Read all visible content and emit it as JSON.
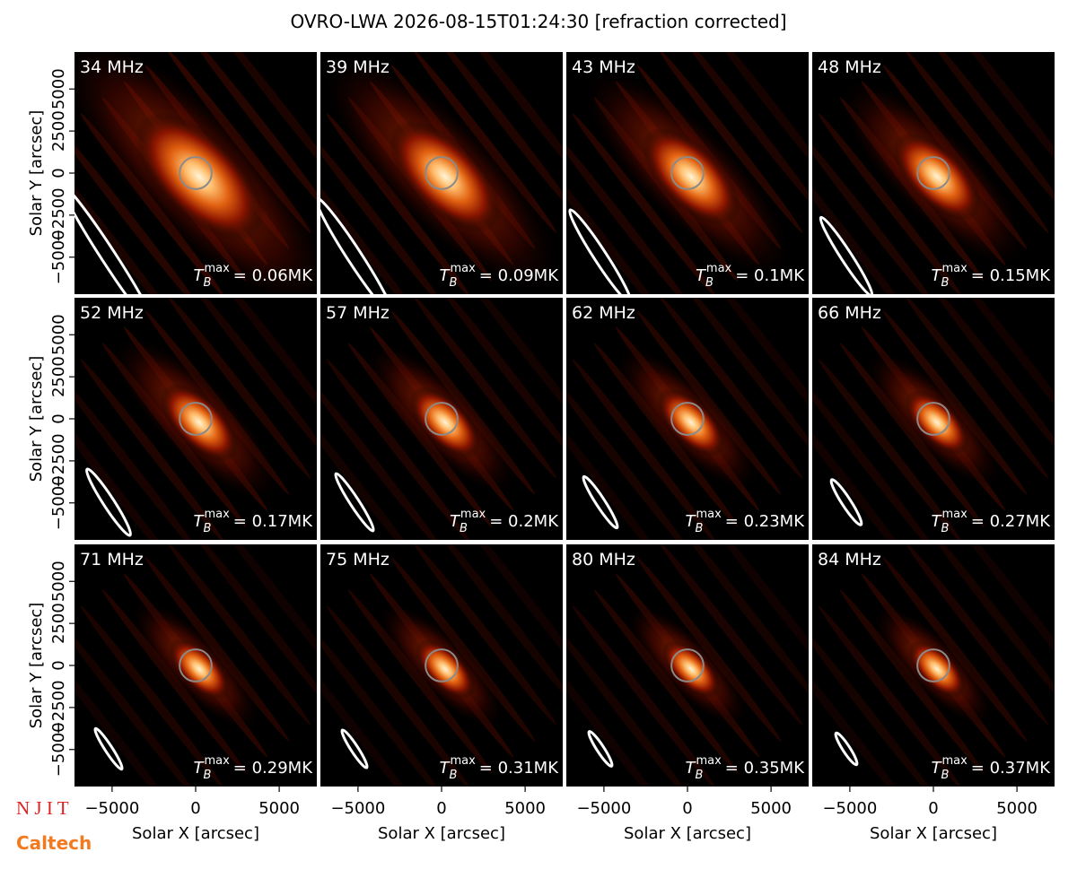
{
  "title": "OVRO-LWA 2026-08-15T01:24:30 [refraction corrected]",
  "logos": [
    "N J I T",
    "Caltech"
  ],
  "chart_data": [
    {
      "type": "image",
      "title": "34 MHz",
      "xlim": [
        -7250,
        7250
      ],
      "ylim": [
        -7200,
        7200
      ],
      "ylabel": "Solar Y [arcsec]",
      "yticks": [
        {
          "value": -5000,
          "label": "−5000"
        },
        {
          "value": -2500,
          "label": "−2500"
        },
        0,
        2500,
        5000
      ],
      "annotation": {
        "symbol": "T",
        "subscript": "B",
        "superscript": "max",
        "value": 0.06,
        "label": "= 0.06MK"
      }
    },
    {
      "type": "image",
      "title": "39 MHz",
      "xlim": [
        -7250,
        7250
      ],
      "ylim": [
        -7200,
        7200
      ],
      "annotation": {
        "symbol": "T",
        "subscript": "B",
        "superscript": "max",
        "value": 0.09,
        "label": "= 0.09MK"
      }
    },
    {
      "type": "image",
      "title": "43 MHz",
      "xlim": [
        -7250,
        7250
      ],
      "ylim": [
        -7200,
        7200
      ],
      "annotation": {
        "symbol": "T",
        "subscript": "B",
        "superscript": "max",
        "value": 0.1,
        "label": "= 0.1MK"
      }
    },
    {
      "type": "image",
      "title": "48 MHz",
      "xlim": [
        -7250,
        7250
      ],
      "ylim": [
        -7200,
        7200
      ],
      "annotation": {
        "symbol": "T",
        "subscript": "B",
        "superscript": "max",
        "value": 0.15,
        "label": "= 0.15MK"
      }
    },
    {
      "type": "image",
      "title": "52 MHz",
      "xlim": [
        -7250,
        7250
      ],
      "ylim": [
        -7200,
        7200
      ],
      "ylabel": "Solar Y [arcsec]",
      "yticks": [
        {
          "value": -5000,
          "label": "−5000"
        },
        {
          "value": -2500,
          "label": "−2500"
        },
        0,
        2500,
        5000
      ],
      "annotation": {
        "symbol": "T",
        "subscript": "B",
        "superscript": "max",
        "value": 0.17,
        "label": "= 0.17MK"
      }
    },
    {
      "type": "image",
      "title": "57 MHz",
      "xlim": [
        -7250,
        7250
      ],
      "ylim": [
        -7200,
        7200
      ],
      "annotation": {
        "symbol": "T",
        "subscript": "B",
        "superscript": "max",
        "value": 0.2,
        "label": "= 0.2MK"
      }
    },
    {
      "type": "image",
      "title": "62 MHz",
      "xlim": [
        -7250,
        7250
      ],
      "ylim": [
        -7200,
        7200
      ],
      "annotation": {
        "symbol": "T",
        "subscript": "B",
        "superscript": "max",
        "value": 0.23,
        "label": "= 0.23MK"
      }
    },
    {
      "type": "image",
      "title": "66 MHz",
      "xlim": [
        -7250,
        7250
      ],
      "ylim": [
        -7200,
        7200
      ],
      "annotation": {
        "symbol": "T",
        "subscript": "B",
        "superscript": "max",
        "value": 0.27,
        "label": "= 0.27MK"
      }
    },
    {
      "type": "image",
      "title": "71 MHz",
      "xlim": [
        -7250,
        7250
      ],
      "ylim": [
        -7200,
        7200
      ],
      "xlabel": "Solar X [arcsec]",
      "ylabel": "Solar Y [arcsec]",
      "xticks": [
        {
          "value": -5000,
          "label": "−5000"
        },
        0,
        5000
      ],
      "yticks": [
        {
          "value": -5000,
          "label": "−5000"
        },
        {
          "value": -2500,
          "label": "−2500"
        },
        0,
        2500,
        5000
      ],
      "annotation": {
        "symbol": "T",
        "subscript": "B",
        "superscript": "max",
        "value": 0.29,
        "label": "= 0.29MK"
      }
    },
    {
      "type": "image",
      "title": "75 MHz",
      "xlim": [
        -7250,
        7250
      ],
      "ylim": [
        -7200,
        7200
      ],
      "xlabel": "Solar X [arcsec]",
      "xticks": [
        {
          "value": -5000,
          "label": "−5000"
        },
        0,
        5000
      ],
      "annotation": {
        "symbol": "T",
        "subscript": "B",
        "superscript": "max",
        "value": 0.31,
        "label": "= 0.31MK"
      }
    },
    {
      "type": "image",
      "title": "80 MHz",
      "xlim": [
        -7250,
        7250
      ],
      "ylim": [
        -7200,
        7200
      ],
      "xlabel": "Solar X [arcsec]",
      "xticks": [
        {
          "value": -5000,
          "label": "−5000"
        },
        0,
        5000
      ],
      "annotation": {
        "symbol": "T",
        "subscript": "B",
        "superscript": "max",
        "value": 0.35,
        "label": "= 0.35MK"
      }
    },
    {
      "type": "image",
      "title": "84 MHz",
      "xlim": [
        -7250,
        7250
      ],
      "ylim": [
        -7200,
        7200
      ],
      "xlabel": "Solar X [arcsec]",
      "xticks": [
        {
          "value": -5000,
          "label": "−5000"
        },
        0,
        5000
      ],
      "annotation": {
        "symbol": "T",
        "subscript": "B",
        "superscript": "max",
        "value": 0.37,
        "label": "= 0.37MK"
      }
    }
  ]
}
